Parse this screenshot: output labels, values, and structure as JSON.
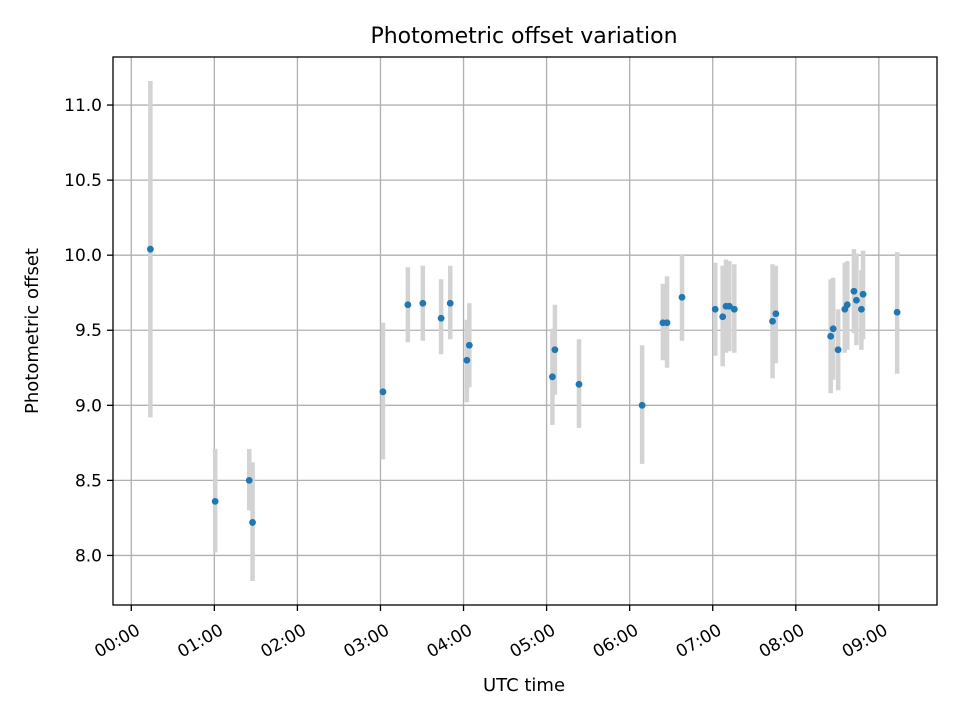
{
  "chart_data": {
    "type": "scatter",
    "title": "Photometric offset variation",
    "xlabel": "UTC time",
    "ylabel": "Photometric offset",
    "x_unit": "hours",
    "xlim": [
      -0.22,
      9.7
    ],
    "ylim": [
      7.67,
      11.32
    ],
    "x_ticks": [
      {
        "value": 0,
        "label": "00:00"
      },
      {
        "value": 1,
        "label": "01:00"
      },
      {
        "value": 2,
        "label": "02:00"
      },
      {
        "value": 3,
        "label": "03:00"
      },
      {
        "value": 4,
        "label": "04:00"
      },
      {
        "value": 5,
        "label": "05:00"
      },
      {
        "value": 6,
        "label": "06:00"
      },
      {
        "value": 7,
        "label": "07:00"
      },
      {
        "value": 8,
        "label": "08:00"
      },
      {
        "value": 9,
        "label": "09:00"
      }
    ],
    "y_ticks": [
      {
        "value": 8.0,
        "label": "8.0"
      },
      {
        "value": 8.5,
        "label": "8.5"
      },
      {
        "value": 9.0,
        "label": "9.0"
      },
      {
        "value": 9.5,
        "label": "9.5"
      },
      {
        "value": 10.0,
        "label": "10.0"
      },
      {
        "value": 10.5,
        "label": "10.5"
      },
      {
        "value": 11.0,
        "label": "11.0"
      }
    ],
    "grid": true,
    "colors": {
      "points": "#1f77b4",
      "error_bars": "#d3d3d3"
    },
    "points": [
      {
        "x": 0.23,
        "y": 10.04,
        "lo": 8.92,
        "hi": 11.16
      },
      {
        "x": 1.01,
        "y": 8.36,
        "lo": 8.02,
        "hi": 8.71
      },
      {
        "x": 1.42,
        "y": 8.5,
        "lo": 8.3,
        "hi": 8.71
      },
      {
        "x": 1.46,
        "y": 8.22,
        "lo": 7.83,
        "hi": 8.62
      },
      {
        "x": 3.03,
        "y": 9.09,
        "lo": 8.64,
        "hi": 9.55
      },
      {
        "x": 3.33,
        "y": 9.67,
        "lo": 9.42,
        "hi": 9.92
      },
      {
        "x": 3.51,
        "y": 9.68,
        "lo": 9.43,
        "hi": 9.93
      },
      {
        "x": 3.73,
        "y": 9.58,
        "lo": 9.34,
        "hi": 9.84
      },
      {
        "x": 3.84,
        "y": 9.68,
        "lo": 9.44,
        "hi": 9.93
      },
      {
        "x": 4.04,
        "y": 9.3,
        "lo": 9.02,
        "hi": 9.57
      },
      {
        "x": 4.07,
        "y": 9.4,
        "lo": 9.12,
        "hi": 9.68
      },
      {
        "x": 5.07,
        "y": 9.19,
        "lo": 8.87,
        "hi": 9.51
      },
      {
        "x": 5.1,
        "y": 9.37,
        "lo": 9.07,
        "hi": 9.67
      },
      {
        "x": 5.39,
        "y": 9.14,
        "lo": 8.85,
        "hi": 9.44
      },
      {
        "x": 6.15,
        "y": 9.0,
        "lo": 8.61,
        "hi": 9.4
      },
      {
        "x": 6.4,
        "y": 9.55,
        "lo": 9.3,
        "hi": 9.81
      },
      {
        "x": 6.45,
        "y": 9.55,
        "lo": 9.25,
        "hi": 9.86
      },
      {
        "x": 6.63,
        "y": 9.72,
        "lo": 9.43,
        "hi": 10.0
      },
      {
        "x": 7.03,
        "y": 9.64,
        "lo": 9.33,
        "hi": 9.95
      },
      {
        "x": 7.12,
        "y": 9.59,
        "lo": 9.26,
        "hi": 9.93
      },
      {
        "x": 7.16,
        "y": 9.66,
        "lo": 9.35,
        "hi": 9.97
      },
      {
        "x": 7.2,
        "y": 9.66,
        "lo": 9.36,
        "hi": 9.96
      },
      {
        "x": 7.26,
        "y": 9.64,
        "lo": 9.35,
        "hi": 9.94
      },
      {
        "x": 7.72,
        "y": 9.56,
        "lo": 9.18,
        "hi": 9.94
      },
      {
        "x": 7.76,
        "y": 9.61,
        "lo": 9.28,
        "hi": 9.93
      },
      {
        "x": 8.42,
        "y": 9.46,
        "lo": 9.08,
        "hi": 9.84
      },
      {
        "x": 8.45,
        "y": 9.51,
        "lo": 9.17,
        "hi": 9.85
      },
      {
        "x": 8.51,
        "y": 9.37,
        "lo": 9.1,
        "hi": 9.64
      },
      {
        "x": 8.59,
        "y": 9.64,
        "lo": 9.35,
        "hi": 9.95
      },
      {
        "x": 8.62,
        "y": 9.67,
        "lo": 9.37,
        "hi": 9.96
      },
      {
        "x": 8.7,
        "y": 9.76,
        "lo": 9.48,
        "hi": 10.04
      },
      {
        "x": 8.73,
        "y": 9.7,
        "lo": 9.4,
        "hi": 10.01
      },
      {
        "x": 8.79,
        "y": 9.64,
        "lo": 9.37,
        "hi": 9.9
      },
      {
        "x": 8.81,
        "y": 9.74,
        "lo": 9.44,
        "hi": 10.03
      },
      {
        "x": 9.22,
        "y": 9.62,
        "lo": 9.21,
        "hi": 10.02
      }
    ]
  }
}
